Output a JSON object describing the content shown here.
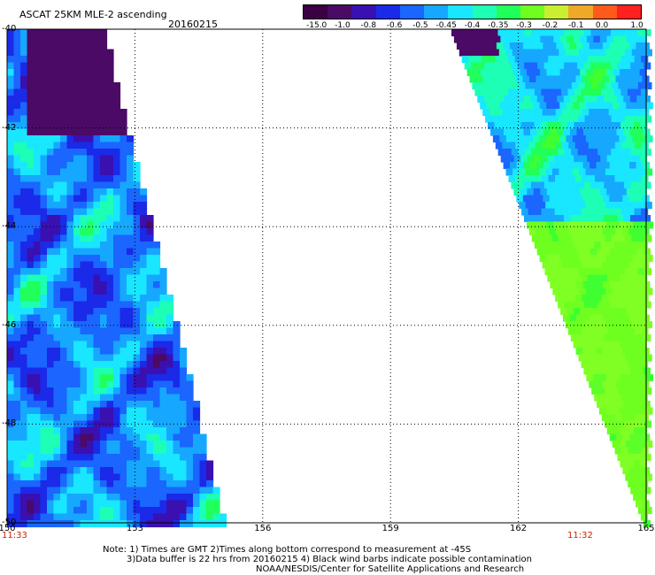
{
  "header": {
    "title": "ASCAT 25KM MLE-2 ascending",
    "date": "20160215"
  },
  "colorbar": {
    "tick_labels": [
      "-15.0",
      "-1.0",
      "-0.8",
      "-0.6",
      "-0.5",
      "-0.45",
      "-0.4",
      "-0.35",
      "-0.3",
      "-0.2",
      "-0.1",
      "0.0",
      "1.0"
    ],
    "colors": [
      "#3a0042",
      "#4a0a66",
      "#3a10b0",
      "#1a2ae8",
      "#1a66ff",
      "#16a8ff",
      "#19e6ff",
      "#1cffb4",
      "#20ff5a",
      "#6eff20",
      "#c8f030",
      "#f0a828",
      "#ff5a1a",
      "#ff2020"
    ]
  },
  "map": {
    "latitudes": [
      "-40",
      "-42",
      "-44",
      "-46",
      "-48",
      "-50"
    ],
    "longitudes": [
      "150",
      "153",
      "156",
      "159",
      "162",
      "165"
    ],
    "lat_range": [
      -50,
      -40
    ],
    "lon_range": [
      150,
      165
    ],
    "start_time": "11:33",
    "end_time": "11:32",
    "colors": {
      "land_none": "#ffffff",
      "grid": "#000000",
      "time_label": "#cc2200"
    }
  },
  "notes": {
    "line1": "Note: 1) Times are GMT 2)Times along bottom correspond to measurement at -45S",
    "line2": "3)Data buffer is 22 hrs from 20160215 4) Black wind barbs indicate possible contamination",
    "line3": "NOAA/NESDIS/Center for Satellite Applications and Research"
  }
}
